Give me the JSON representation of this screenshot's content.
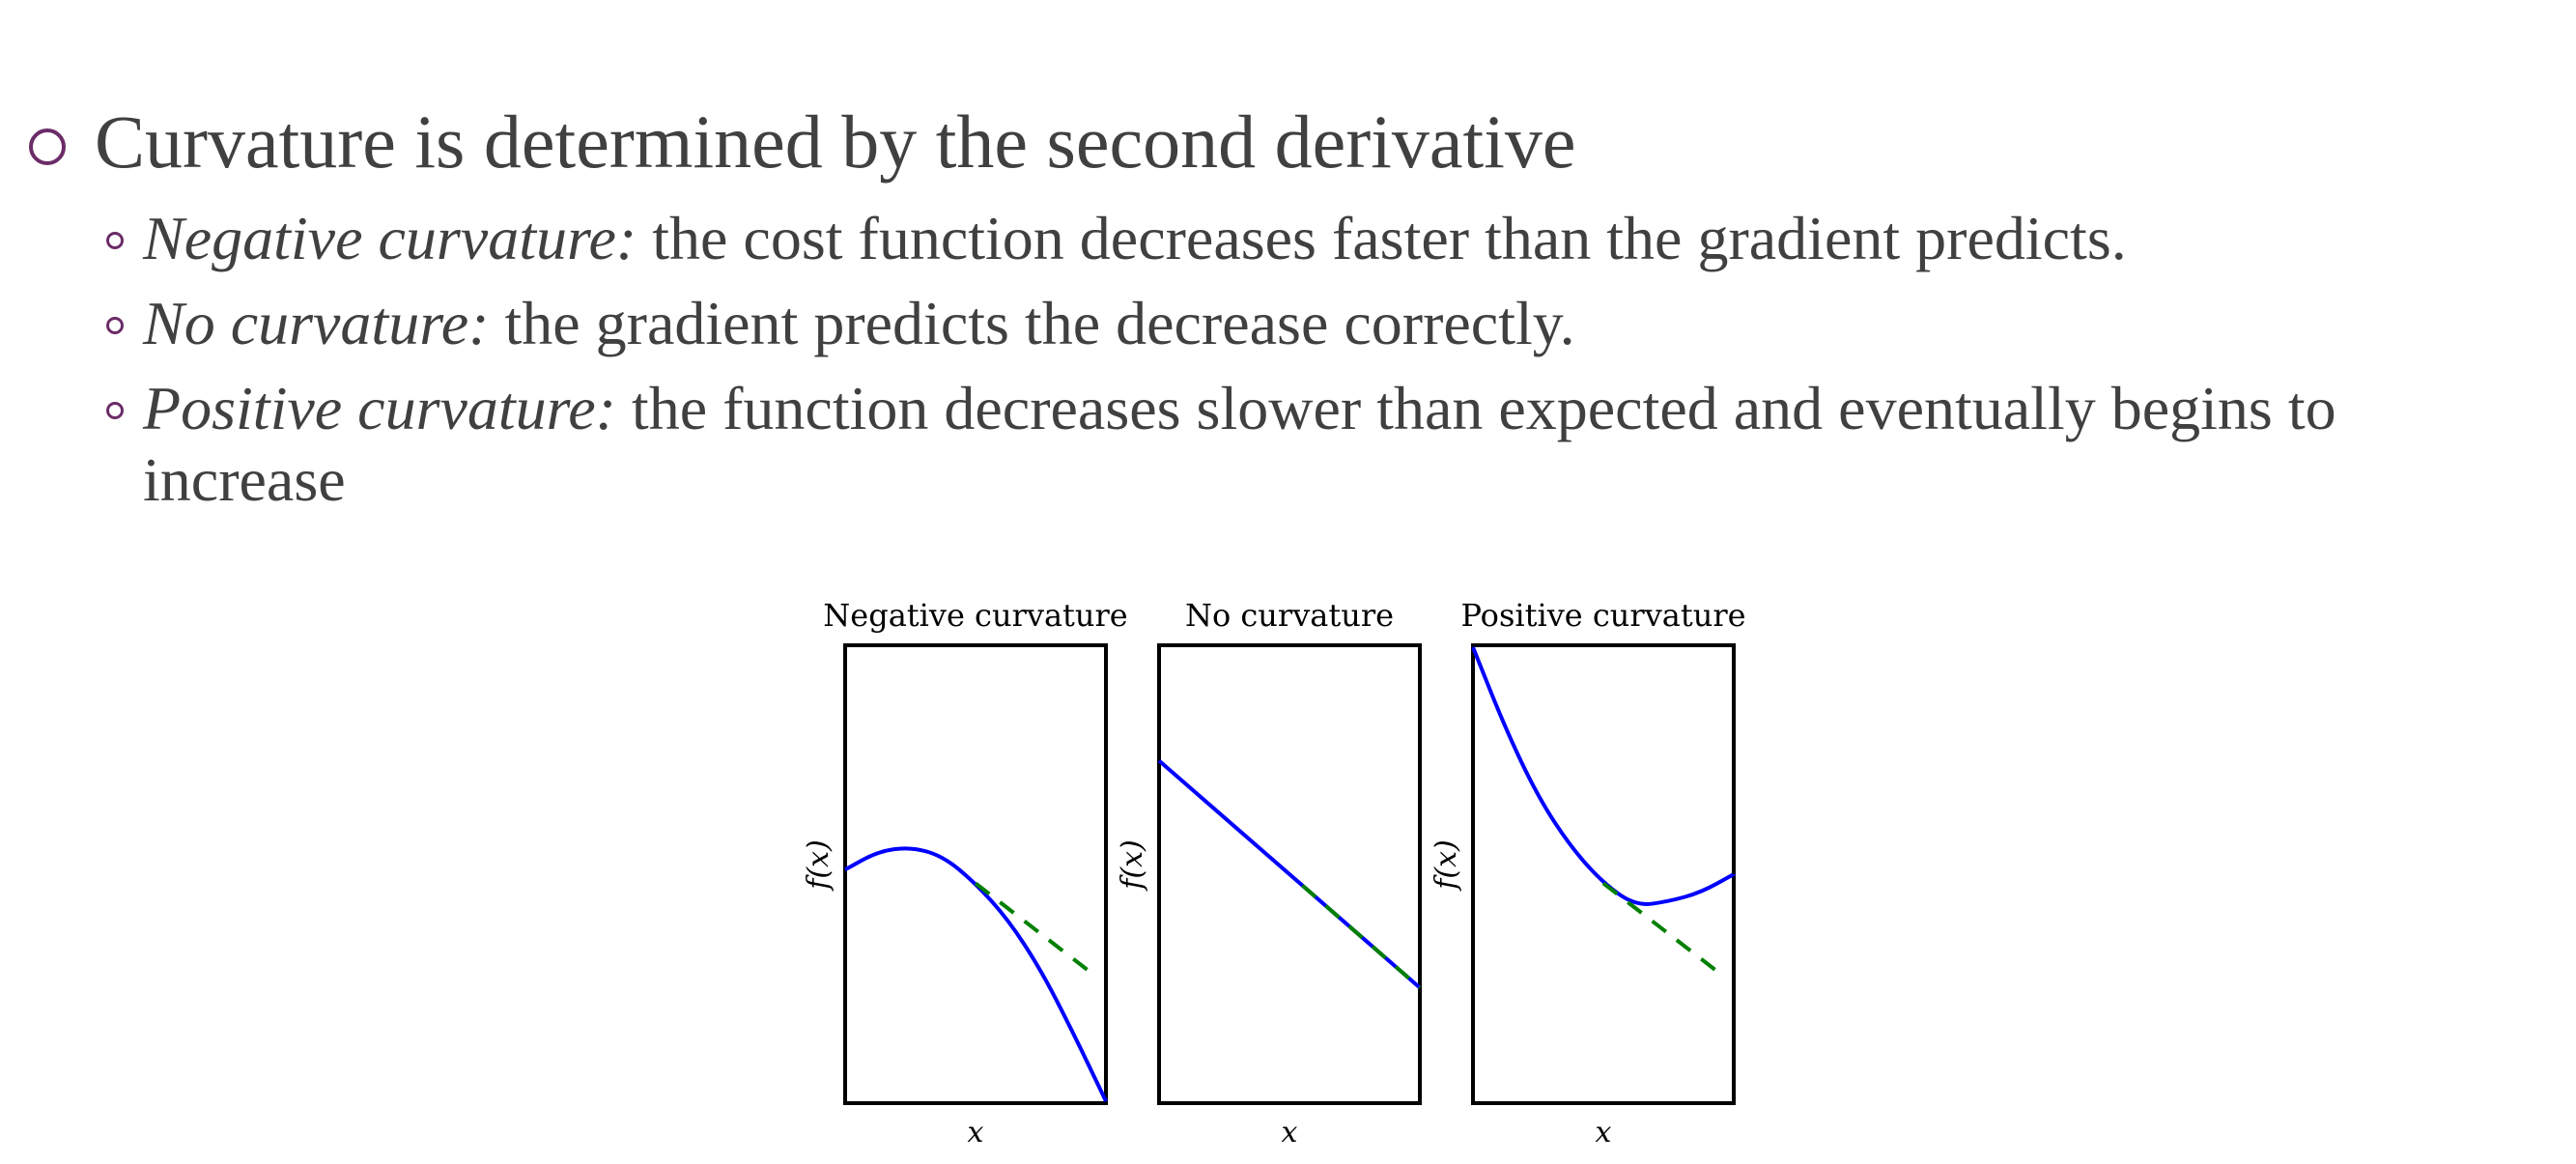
{
  "slide": {
    "heading": "Curvature is determined by the second derivative",
    "points": [
      {
        "term": "Negative curvature:",
        "text": " the cost function decreases faster than the gradient predicts."
      },
      {
        "term": "No curvature:",
        "text": " the gradient predicts the decrease correctly."
      },
      {
        "term": "Positive curvature:",
        "text": " the function decreases slower than expected and eventually begins to increase"
      }
    ]
  },
  "colors": {
    "text": "#404040",
    "bullet": "#6b2c68",
    "curve": "#0000ff",
    "tangent": "#008000",
    "axes": "#000000"
  },
  "chart_data": [
    {
      "type": "line",
      "title": "Negative curvature",
      "xlabel": "x",
      "ylabel": "f(x)",
      "series": [
        {
          "style": "solid",
          "color": "#0000ff",
          "x": [
            0,
            0.125,
            0.25,
            0.375,
            0.5,
            0.625,
            0.75,
            0.875,
            1.0
          ],
          "y": [
            0.51,
            0.55,
            0.56,
            0.54,
            0.48,
            0.4,
            0.29,
            0.15,
            0.0
          ]
        },
        {
          "style": "dashed",
          "color": "#008000",
          "x": [
            0.5,
            0.95
          ],
          "y": [
            0.48,
            0.28
          ]
        }
      ]
    },
    {
      "type": "line",
      "title": "No curvature",
      "xlabel": "x",
      "ylabel": "f(x)",
      "series": [
        {
          "style": "solid",
          "color": "#0000ff",
          "x": [
            0,
            1.0
          ],
          "y": [
            0.75,
            0.25
          ]
        },
        {
          "style": "dashed",
          "color": "#008000",
          "x": [
            0.55,
            1.0
          ],
          "y": [
            0.475,
            0.25
          ]
        }
      ]
    },
    {
      "type": "line",
      "title": "Positive curvature",
      "xlabel": "x",
      "ylabel": "f(x)",
      "series": [
        {
          "style": "solid",
          "color": "#0000ff",
          "x": [
            0,
            0.125,
            0.25,
            0.375,
            0.5,
            0.625,
            0.75,
            0.875,
            1.0
          ],
          "y": [
            1.0,
            0.82,
            0.67,
            0.56,
            0.48,
            0.43,
            0.44,
            0.46,
            0.5
          ]
        },
        {
          "style": "dashed",
          "color": "#008000",
          "x": [
            0.5,
            0.95
          ],
          "y": [
            0.48,
            0.28
          ]
        }
      ]
    }
  ]
}
